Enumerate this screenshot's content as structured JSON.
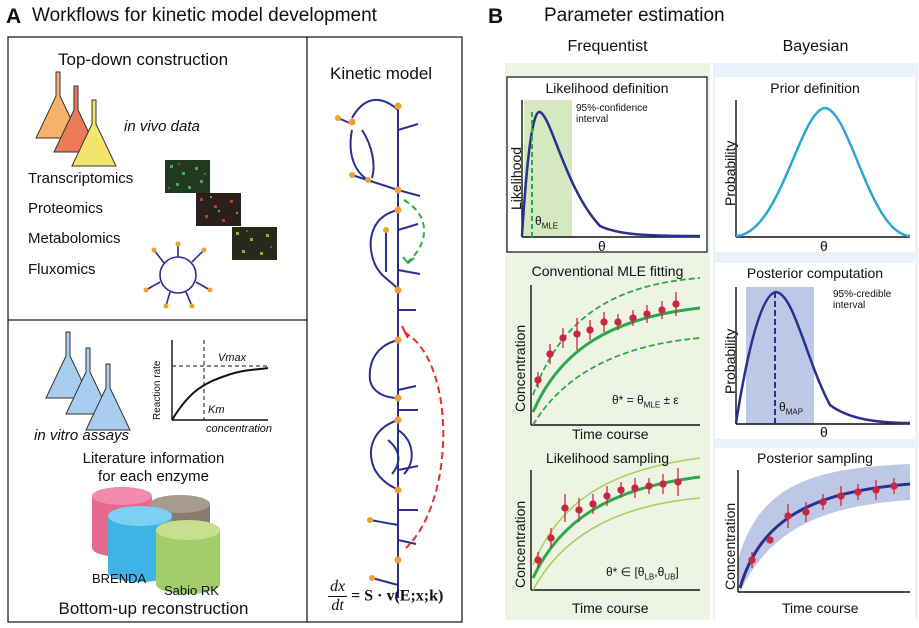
{
  "panel_a": {
    "letter": "A",
    "title": "Workflows for kinetic model development",
    "top_down": {
      "title": "Top-down construction",
      "in_vivo": "in vivo data",
      "omics": [
        "Transcriptomics",
        "Proteomics",
        "Metabolomics",
        "Fluxomics"
      ]
    },
    "bottom_up": {
      "in_vitro": "in vitro assays",
      "plot": {
        "ylabel": "Reaction rate",
        "xlabel": "concentration",
        "vmax": "Vmax",
        "km": "Km"
      },
      "literature_line1": "Literature information",
      "literature_line2": "for each enzyme",
      "db1": "BRENDA",
      "db2": "Sabio RK",
      "title": "Bottom-up reconstruction"
    },
    "kinetic_model": {
      "title": "Kinetic model",
      "eq_num": "dx",
      "eq_den": "dt",
      "eq_rhs": "= S · v(E;x;k)"
    }
  },
  "panel_b": {
    "letter": "B",
    "title": "Parameter estimation",
    "frequentist": "Frequentist",
    "bayesian": "Bayesian",
    "likelihood_def": {
      "title": "Likelihood definition",
      "ylabel": "Likelihood",
      "xlabel": "θ",
      "ci1": "95%-confidence",
      "ci2": "interval",
      "theta": "θ",
      "theta_sub": "MLE"
    },
    "prior_def": {
      "title": "Prior definition",
      "ylabel": "Probability",
      "xlabel": "θ"
    },
    "mle_fit": {
      "title": "Conventional MLE fitting",
      "ylabel": "Concentration",
      "xlabel": "Time course",
      "eq_pre": "θ* = θ",
      "eq_sub": "MLE",
      "eq_post": " ± ε"
    },
    "posterior_comp": {
      "title": "Posterior computation",
      "ylabel": "Probability",
      "xlabel": "θ",
      "ci1": "95%-credible",
      "ci2": "interval",
      "theta": "θ",
      "theta_sub": "MAP"
    },
    "lik_sampling": {
      "title": "Likelihood sampling",
      "ylabel": "Concentration",
      "xlabel": "Time course",
      "eq_pre": "θ* ∈ [θ",
      "eq_sub1": "LB",
      "eq_mid": ",θ",
      "eq_sub2": "UB",
      "eq_post": "]"
    },
    "post_sampling": {
      "title": "Posterior sampling",
      "ylabel": "Concentration",
      "xlabel": "Time course"
    }
  },
  "colors": {
    "navy": "#2b2f8f",
    "green": "#2ea84a",
    "dashed_green": "#2ea84a",
    "dashed_red": "#e03030",
    "light_green_bg": "#eef4e3",
    "light_blue_bg": "#eaf1f8",
    "cyan": "#29a8d8",
    "red_dot": "#c8283c",
    "orange_node": "#f0a030",
    "posterior_band": "#bcc8e6"
  }
}
